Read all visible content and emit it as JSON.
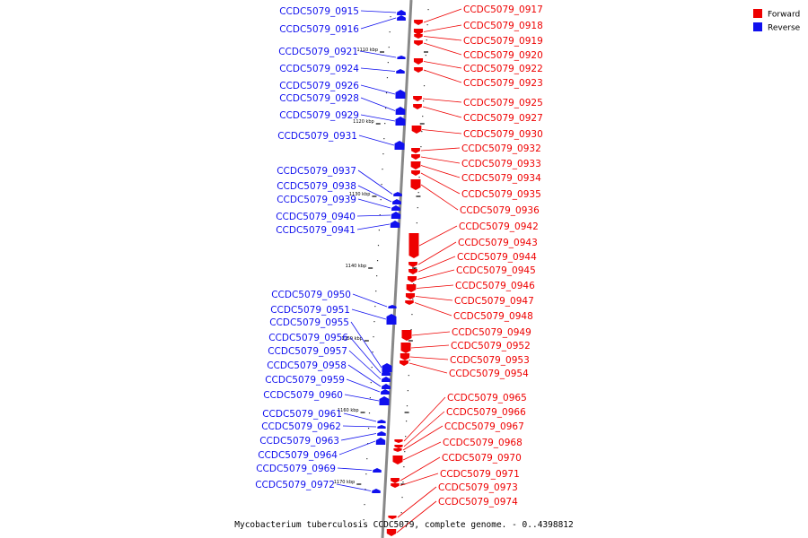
{
  "caption": "Mycobacterium tuberculosis CCDC5079, complete genome. - 0..4398812",
  "legend": [
    {
      "label": "Forward",
      "color": "#ee0000"
    },
    {
      "label": "Reverse",
      "color": "#1010ee"
    }
  ],
  "colors": {
    "forward": "#ee0000",
    "reverse": "#1010ee",
    "backbone": "#888888"
  },
  "ticks": [
    "1110 kbp",
    "1120 kbp",
    "1130 kbp",
    "1140 kbp",
    "1150 kbp",
    "1160 kbp",
    "1170 kbp"
  ],
  "reverse_genes": [
    "CCDC5079_0915",
    "CCDC5079_0916",
    "CCDC5079_0921",
    "CCDC5079_0924",
    "CCDC5079_0926",
    "CCDC5079_0928",
    "CCDC5079_0929",
    "CCDC5079_0931",
    "CCDC5079_0937",
    "CCDC5079_0938",
    "CCDC5079_0939",
    "CCDC5079_0940",
    "CCDC5079_0941",
    "CCDC5079_0950",
    "CCDC5079_0951",
    "CCDC5079_0955",
    "CCDC5079_0956",
    "CCDC5079_0957",
    "CCDC5079_0958",
    "CCDC5079_0959",
    "CCDC5079_0960",
    "CCDC5079_0961",
    "CCDC5079_0962",
    "CCDC5079_0963",
    "CCDC5079_0964",
    "CCDC5079_0969",
    "CCDC5079_0972"
  ],
  "forward_genes": [
    "CCDC5079_0917",
    "CCDC5079_0918",
    "CCDC5079_0919",
    "CCDC5079_0920",
    "CCDC5079_0922",
    "CCDC5079_0923",
    "CCDC5079_0925",
    "CCDC5079_0927",
    "CCDC5079_0930",
    "CCDC5079_0932",
    "CCDC5079_0933",
    "CCDC5079_0934",
    "CCDC5079_0935",
    "CCDC5079_0936",
    "CCDC5079_0942",
    "CCDC5079_0943",
    "CCDC5079_0944",
    "CCDC5079_0945",
    "CCDC5079_0946",
    "CCDC5079_0947",
    "CCDC5079_0948",
    "CCDC5079_0949",
    "CCDC5079_0952",
    "CCDC5079_0953",
    "CCDC5079_0954",
    "CCDC5079_0965",
    "CCDC5079_0966",
    "CCDC5079_0967",
    "CCDC5079_0968",
    "CCDC5079_0970",
    "CCDC5079_0971",
    "CCDC5079_0973",
    "CCDC5079_0974"
  ]
}
